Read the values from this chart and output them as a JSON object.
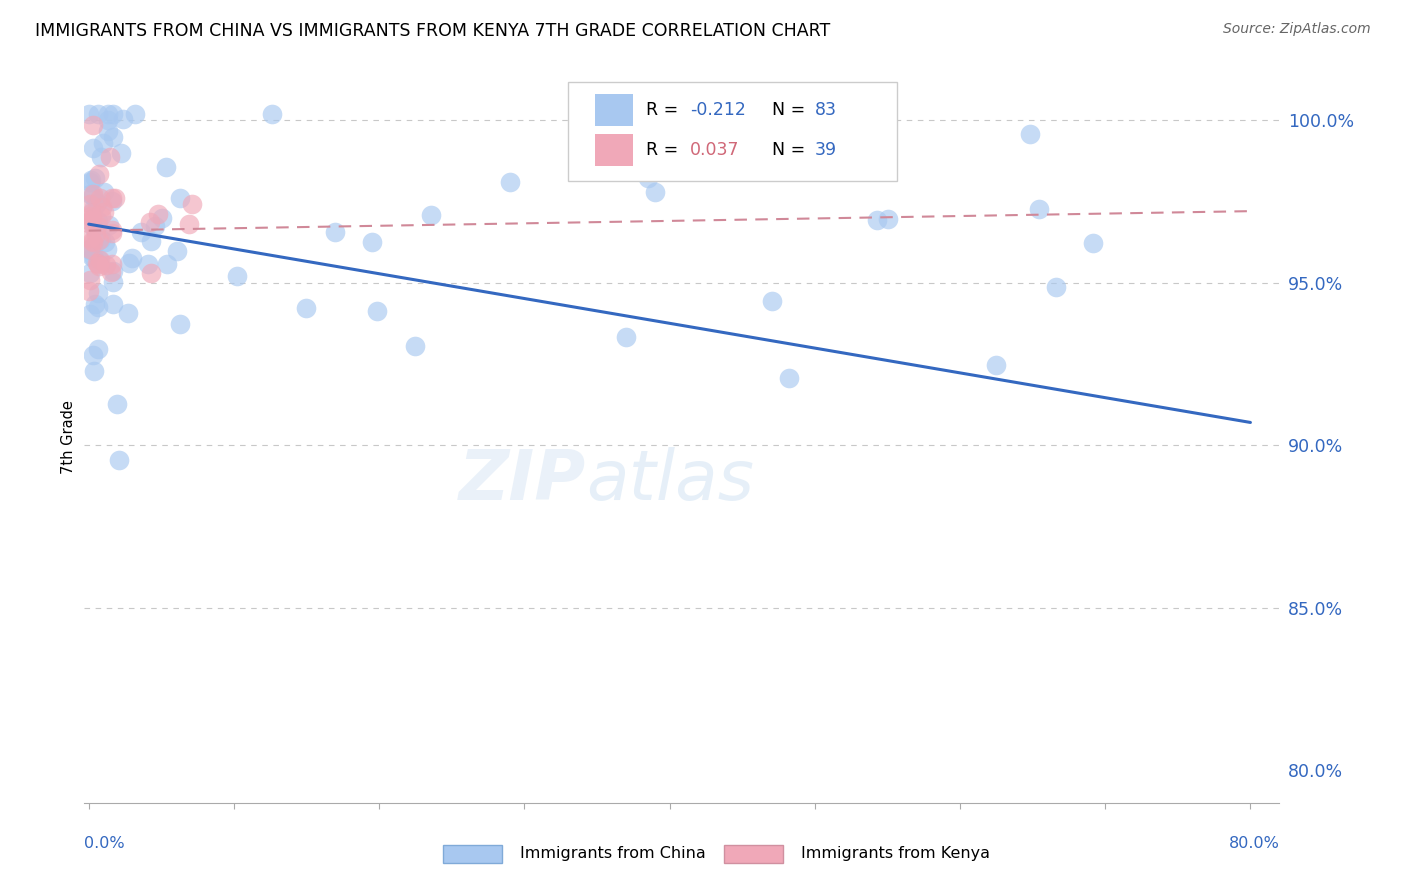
{
  "title": "IMMIGRANTS FROM CHINA VS IMMIGRANTS FROM KENYA 7TH GRADE CORRELATION CHART",
  "source": "Source: ZipAtlas.com",
  "ylabel": "7th Grade",
  "ytick_labels": [
    "80.0%",
    "85.0%",
    "90.0%",
    "95.0%",
    "100.0%"
  ],
  "ytick_values": [
    0.8,
    0.85,
    0.9,
    0.95,
    1.0
  ],
  "xlim": [
    0.0,
    0.8
  ],
  "ylim": [
    0.79,
    1.015
  ],
  "R_china": -0.212,
  "N_china": 83,
  "R_kenya": 0.037,
  "N_kenya": 39,
  "color_china": "#a8c8f0",
  "color_kenya": "#f0a8b8",
  "line_color_china": "#3468c0",
  "line_color_kenya": "#d08898",
  "watermark": "ZIPatlas",
  "china_line_x": [
    0.0,
    0.8
  ],
  "china_line_y": [
    0.968,
    0.907
  ],
  "kenya_line_x": [
    0.0,
    0.8
  ],
  "kenya_line_y": [
    0.966,
    0.972
  ],
  "legend_R_china": "-0.212",
  "legend_N_china": "83",
  "legend_R_kenya": "0.037",
  "legend_N_kenya": "39",
  "color_R_china": "#3468c0",
  "color_R_kenya": "#d06878",
  "color_N": "#3468c0"
}
